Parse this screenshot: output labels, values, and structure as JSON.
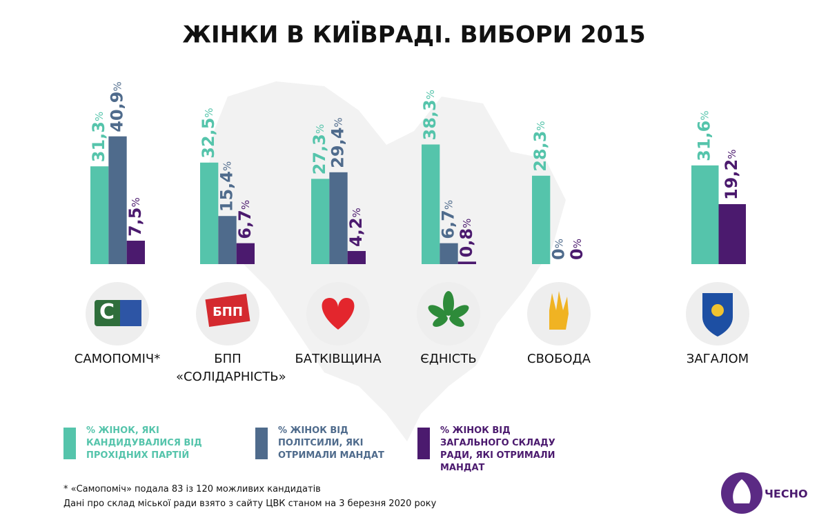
{
  "chart_data": {
    "type": "bar",
    "title": "ЖІНКИ В КИЇВРАДІ. ВИБОРИ 2015",
    "categories": [
      "САМОПОМІЧ*",
      "БПП «СОЛІДАРНІСТЬ»",
      "БАТКІВЩИНА",
      "ЄДНІСТЬ",
      "СВОБОДА",
      "ЗАГАЛОМ"
    ],
    "series": [
      {
        "name": "% ЖІНОК, ЯКІ КАНДИДУВАЛИСЯ ВІД ПРОХІДНИХ ПАРТІЙ",
        "color": "#55c4ab",
        "values": [
          31.3,
          32.5,
          27.3,
          38.3,
          28.3,
          31.6
        ],
        "value_labels": [
          "31,3%",
          "32,5%",
          "27,3%",
          "38,3%",
          "28,3%",
          "31,6%"
        ]
      },
      {
        "name": "% ЖІНОК ВІД ПОЛІТСИЛИ, ЯКІ ОТРИМАЛИ МАНДАТ",
        "color": "#4f6b8c",
        "values": [
          40.9,
          15.4,
          29.4,
          6.7,
          0,
          null
        ],
        "value_labels": [
          "40,9%",
          "15,4%",
          "29,4%",
          "6,7%",
          "0%",
          null
        ]
      },
      {
        "name": "% ЖІНОК ВІД ЗАГАЛЬНОГО СКЛАДУ РАДИ, ЯКІ ОТРИМАЛИ МАНДАТ",
        "color": "#4b1a6e",
        "values": [
          7.5,
          6.7,
          4.2,
          0.8,
          0,
          19.2
        ],
        "value_labels": [
          "7,5%",
          "6,7%",
          "4,2%",
          "0,8%",
          "0%",
          "19,2%"
        ]
      }
    ],
    "notes": [
      "* «Самопоміч» подала 83 із 120 можливих кандидатів",
      "Дані про склад міської ради взято з сайту ЦВК станом на 3 березня 2020 року"
    ],
    "logo": "ЧЕСНО"
  }
}
